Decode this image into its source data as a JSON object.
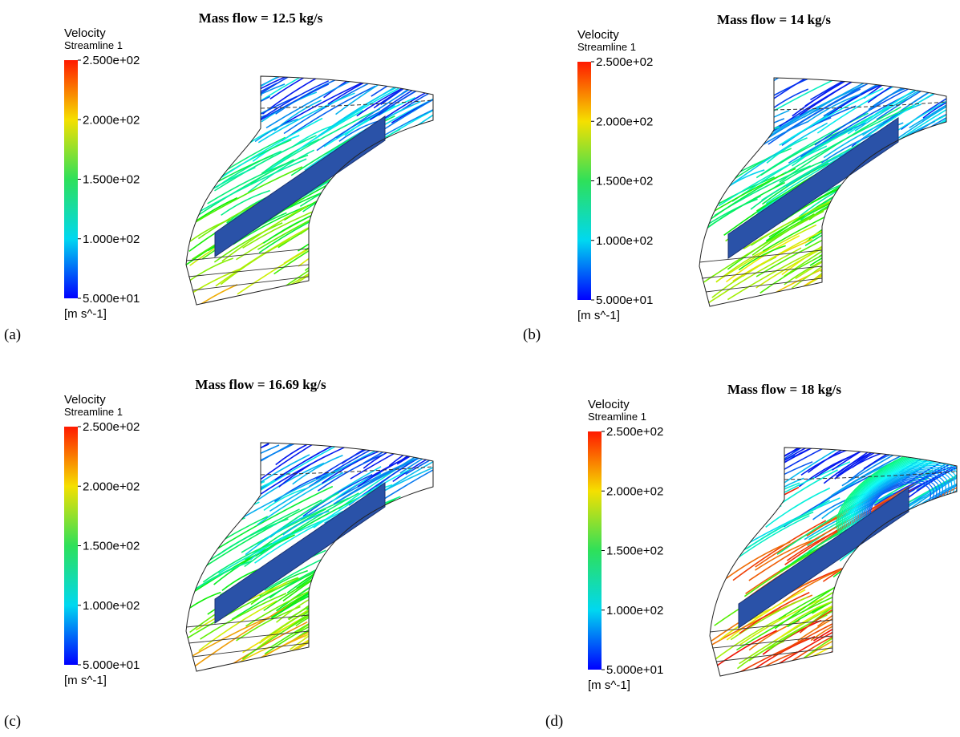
{
  "panels": [
    {
      "title": "Mass flow = 12.5 kg/s",
      "legend_title": "Velocity",
      "legend_subtitle": "Streamline 1",
      "ticks": [
        "2.500e+02",
        "2.000e+02",
        "1.500e+02",
        "1.000e+02",
        "5.000e+01"
      ],
      "unit": "[m s^-1]",
      "label": "(a)"
    },
    {
      "title": "Mass flow = 14 kg/s",
      "legend_title": "Velocity",
      "legend_subtitle": "Streamline 1",
      "ticks": [
        "2.500e+02",
        "2.000e+02",
        "1.500e+02",
        "1.000e+02",
        "5.000e+01"
      ],
      "unit": "[m s^-1]",
      "label": "(b)"
    },
    {
      "title": "Mass flow = 16.69 kg/s",
      "legend_title": "Velocity",
      "legend_subtitle": "Streamline 1",
      "ticks": [
        "2.500e+02",
        "2.000e+02",
        "1.500e+02",
        "1.000e+02",
        "5.000e+01"
      ],
      "unit": "[m s^-1]",
      "label": "(c)"
    },
    {
      "title": "Mass flow = 18 kg/s",
      "legend_title": "Velocity",
      "legend_subtitle": "Streamline 1",
      "ticks": [
        "2.500e+02",
        "2.000e+02",
        "1.500e+02",
        "1.000e+02",
        "5.000e+01"
      ],
      "unit": "[m s^-1]",
      "label": "(d)"
    }
  ]
}
